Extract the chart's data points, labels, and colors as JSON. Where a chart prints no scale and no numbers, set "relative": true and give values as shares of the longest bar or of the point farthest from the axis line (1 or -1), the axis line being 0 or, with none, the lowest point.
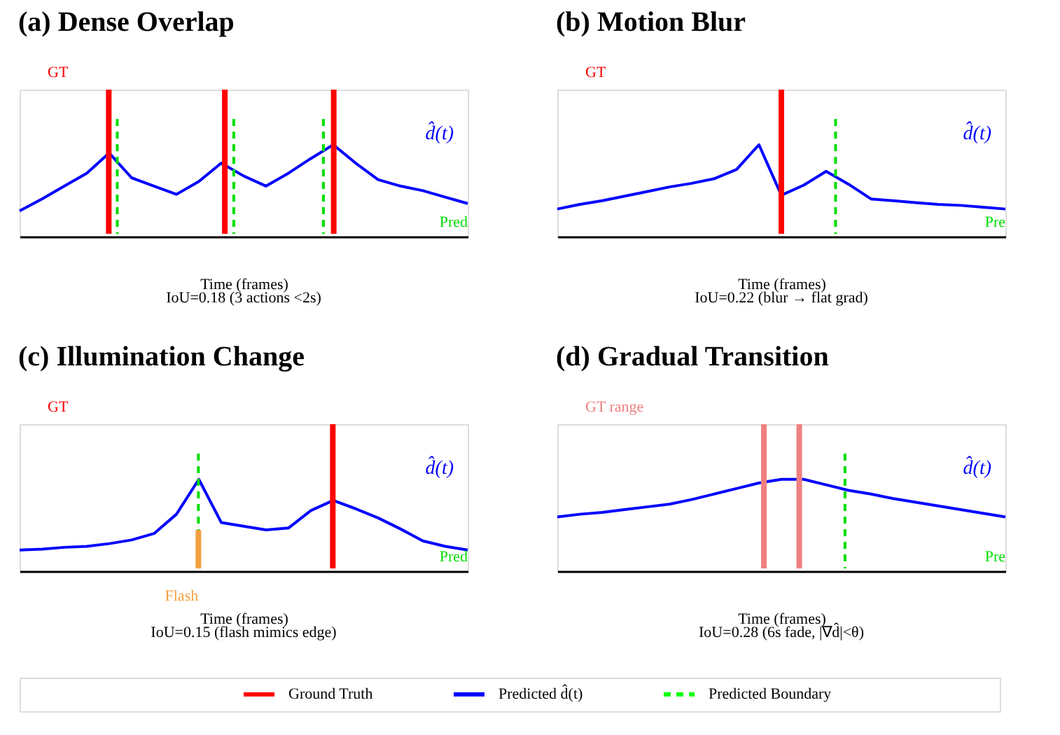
{
  "chart_data": [
    {
      "type": "line",
      "title": "(a) Dense Overlap",
      "xlabel": "Time (frames)",
      "annotations": [
        "IoU=0.18 (3 actions <2s)"
      ],
      "relative": true,
      "tick_labels": false,
      "categories": [
        null,
        null,
        null,
        null,
        null,
        null,
        null,
        null,
        null,
        null,
        null,
        null,
        null,
        null,
        null,
        null,
        null,
        null,
        null,
        null,
        null
      ],
      "series": [
        {
          "name": "d̂(t)",
          "color": "#0000ff",
          "values": [
            0.28,
            0.41,
            0.55,
            0.69,
            0.91,
            0.64,
            0.55,
            0.46,
            0.6,
            0.8,
            0.66,
            0.55,
            0.69,
            0.85,
            1.0,
            0.8,
            0.62,
            0.55,
            0.5,
            0.43,
            0.36
          ]
        }
      ],
      "ref_lines": [
        {
          "axis": "x",
          "label": "GT",
          "color": "#ff0000",
          "line_style": "solid"
        },
        {
          "axis": "x",
          "color": "#ff0000",
          "line_style": "solid"
        },
        {
          "axis": "x",
          "color": "#ff0000",
          "line_style": "solid"
        },
        {
          "axis": "x",
          "label": "Pred",
          "color": "#00dd00",
          "line_style": "dashed"
        },
        {
          "axis": "x",
          "color": "#00dd00",
          "line_style": "dashed"
        },
        {
          "axis": "x",
          "color": "#00dd00",
          "line_style": "dashed"
        }
      ]
    },
    {
      "type": "line",
      "title": "(b) Motion Blur",
      "xlabel": "Time (frames)",
      "annotations": [
        "IoU=0.22 (blur → flat grad)"
      ],
      "relative": true,
      "tick_labels": false,
      "categories": [
        null,
        null,
        null,
        null,
        null,
        null,
        null,
        null,
        null,
        null,
        null,
        null,
        null,
        null,
        null,
        null,
        null,
        null,
        null,
        null,
        null
      ],
      "series": [
        {
          "name": "d̂(t)",
          "color": "#0000ff",
          "values": [
            0.3,
            0.35,
            0.39,
            0.44,
            0.49,
            0.54,
            0.58,
            0.63,
            0.73,
            1.0,
            0.45,
            0.56,
            0.71,
            0.57,
            0.41,
            0.39,
            0.37,
            0.35,
            0.34,
            0.32,
            0.3
          ]
        }
      ],
      "ref_lines": [
        {
          "axis": "x",
          "label": "GT",
          "color": "#ff0000",
          "line_style": "solid"
        },
        {
          "axis": "x",
          "label": "Pre",
          "color": "#00dd00",
          "line_style": "dashed"
        }
      ]
    },
    {
      "type": "line",
      "title": "(c) Illumination Change",
      "xlabel": "Time (frames)",
      "annotations": [
        "IoU=0.15 (flash mimics edge)"
      ],
      "relative": true,
      "tick_labels": false,
      "categories": [
        null,
        null,
        null,
        null,
        null,
        null,
        null,
        null,
        null,
        null,
        null,
        null,
        null,
        null,
        null,
        null,
        null,
        null,
        null,
        null,
        null
      ],
      "series": [
        {
          "name": "d̂(t)",
          "color": "#0000ff",
          "values": [
            0.23,
            0.24,
            0.26,
            0.27,
            0.3,
            0.34,
            0.41,
            0.62,
            1.0,
            0.53,
            0.49,
            0.45,
            0.47,
            0.66,
            0.77,
            0.68,
            0.58,
            0.46,
            0.33,
            0.27,
            0.23
          ]
        }
      ],
      "ref_lines": [
        {
          "axis": "x",
          "label": "GT",
          "color": "#ff0000",
          "line_style": "solid"
        },
        {
          "axis": "x",
          "label": "Pred",
          "color": "#00dd00",
          "line_style": "dashed"
        },
        {
          "axis": "x",
          "label": "Flash",
          "color": "#f4a040",
          "line_style": "solid"
        }
      ]
    },
    {
      "type": "line",
      "title": "(d) Gradual Transition",
      "xlabel": "Time (frames)",
      "annotations": [
        "IoU=0.28 (6s fade, |∇d̂|<θ)"
      ],
      "relative": true,
      "tick_labels": false,
      "categories": [
        null,
        null,
        null,
        null,
        null,
        null,
        null,
        null,
        null,
        null,
        null,
        null,
        null,
        null,
        null,
        null,
        null,
        null,
        null,
        null,
        null
      ],
      "series": [
        {
          "name": "d̂(t)",
          "color": "#0000ff",
          "values": [
            0.59,
            0.62,
            0.64,
            0.67,
            0.7,
            0.73,
            0.78,
            0.84,
            0.9,
            0.96,
            1.0,
            1.0,
            0.94,
            0.88,
            0.84,
            0.79,
            0.75,
            0.71,
            0.67,
            0.63,
            0.59
          ]
        }
      ],
      "ref_lines": [
        {
          "axis": "x",
          "label": "GT range",
          "color": "#f08080",
          "line_style": "solid"
        },
        {
          "axis": "x",
          "color": "#f08080",
          "line_style": "solid"
        },
        {
          "axis": "x",
          "label": "Pre",
          "color": "#00dd00",
          "line_style": "dashed"
        }
      ]
    },
    {
      "type": "other",
      "series": [
        {
          "name": "Ground Truth",
          "color": "#ff0000",
          "line_style": "solid"
        },
        {
          "name": "Predicted d̂(t)",
          "color": "#0000ff",
          "line_style": "solid"
        },
        {
          "name": "Predicted Boundary",
          "color": "#00ff00",
          "line_style": "dashed"
        }
      ]
    }
  ]
}
